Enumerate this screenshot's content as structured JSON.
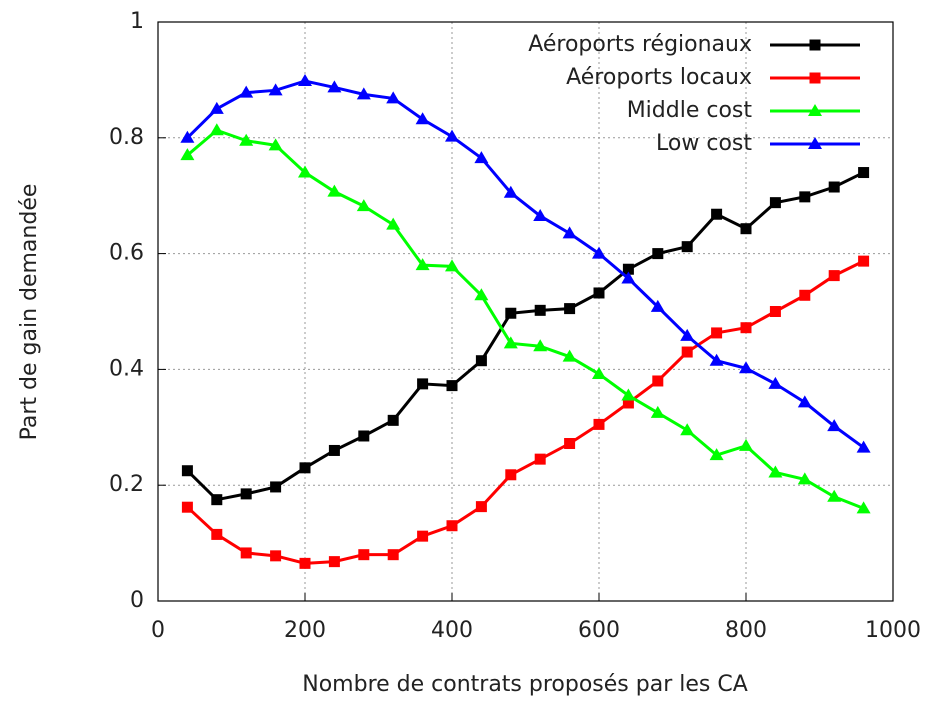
{
  "chart_data": {
    "type": "line",
    "x_label": "Nombre de contrats proposés par les CA",
    "y_label": "Part de gain demandée",
    "x": [
      40,
      80,
      120,
      160,
      200,
      240,
      280,
      320,
      360,
      400,
      440,
      480,
      520,
      560,
      600,
      640,
      680,
      720,
      760,
      800,
      840,
      880,
      920,
      960
    ],
    "series": [
      {
        "name": "Aéroports régionaux",
        "color": "#000000",
        "marker": "square",
        "values": [
          0.225,
          0.175,
          0.185,
          0.197,
          0.23,
          0.26,
          0.285,
          0.312,
          0.375,
          0.372,
          0.415,
          0.497,
          0.502,
          0.505,
          0.532,
          0.573,
          0.6,
          0.612,
          0.668,
          0.643,
          0.688,
          0.698,
          0.715,
          0.74
        ]
      },
      {
        "name": "Aéroports locaux",
        "color": "#ff0000",
        "marker": "square",
        "values": [
          0.162,
          0.115,
          0.083,
          0.078,
          0.065,
          0.068,
          0.08,
          0.08,
          0.112,
          0.13,
          0.163,
          0.218,
          0.245,
          0.272,
          0.305,
          0.342,
          0.38,
          0.43,
          0.463,
          0.472,
          0.5,
          0.528,
          0.562,
          0.587
        ]
      },
      {
        "name": "Middle cost",
        "color": "#00ff00",
        "marker": "triangle",
        "values": [
          0.77,
          0.813,
          0.795,
          0.787,
          0.74,
          0.707,
          0.682,
          0.65,
          0.58,
          0.578,
          0.528,
          0.445,
          0.44,
          0.422,
          0.392,
          0.355,
          0.325,
          0.295,
          0.252,
          0.268,
          0.222,
          0.21,
          0.18,
          0.16
        ]
      },
      {
        "name": "Low cost",
        "color": "#0000ff",
        "marker": "triangle",
        "values": [
          0.8,
          0.85,
          0.878,
          0.882,
          0.898,
          0.887,
          0.875,
          0.868,
          0.832,
          0.802,
          0.765,
          0.705,
          0.665,
          0.635,
          0.6,
          0.557,
          0.508,
          0.458,
          0.415,
          0.402,
          0.375,
          0.343,
          0.302,
          0.265
        ]
      }
    ],
    "xlim": [
      0,
      1000
    ],
    "xticks": [
      0,
      200,
      400,
      600,
      800,
      1000
    ],
    "ylim": [
      0,
      1
    ],
    "yticks": [
      0,
      0.2,
      0.4,
      0.6,
      0.8,
      1
    ],
    "grid": true,
    "legend": "top-right"
  }
}
